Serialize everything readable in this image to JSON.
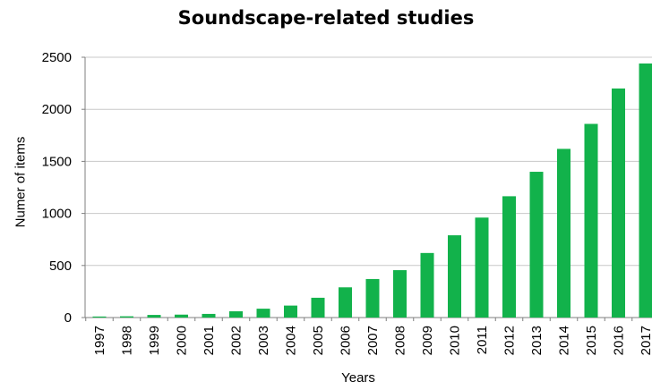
{
  "chart_data": {
    "type": "bar",
    "title": "Soundscape-related studies",
    "xlabel": "Years",
    "ylabel": "Numer of items",
    "categories": [
      "1997",
      "1998",
      "1999",
      "2000",
      "2001",
      "2002",
      "2003",
      "2004",
      "2005",
      "2006",
      "2007",
      "2008",
      "2009",
      "2010",
      "2011",
      "2012",
      "2013",
      "2014",
      "2015",
      "2016",
      "2017"
    ],
    "values": [
      10,
      12,
      25,
      28,
      35,
      60,
      85,
      115,
      190,
      290,
      370,
      455,
      620,
      790,
      960,
      1165,
      1400,
      1620,
      1860,
      2200,
      2440
    ],
    "ylim": [
      0,
      2500
    ],
    "yticks": [
      "0",
      "500",
      "1000",
      "1500",
      "2000",
      "2500"
    ],
    "grid": true,
    "legend": "none",
    "colors": {
      "bar": "#12b24b",
      "grid": "#c8c8c8",
      "axis": "#7f7f7f"
    }
  }
}
